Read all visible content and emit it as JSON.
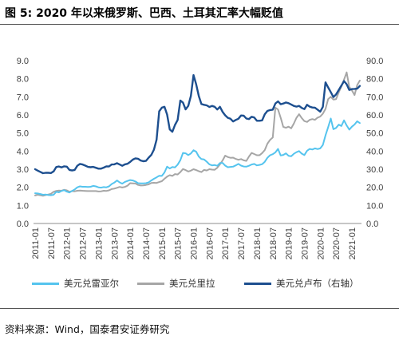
{
  "title": "图 5: 2020 年以来俄罗斯、巴西、土耳其汇率大幅贬值",
  "source": "资料来源：Wind，国泰君安证券研究",
  "chart_data": {
    "type": "line",
    "legend_position": "bottom",
    "grid": false,
    "x": [
      "2011-01",
      "2011-02",
      "2011-03",
      "2011-04",
      "2011-05",
      "2011-06",
      "2011-07",
      "2011-08",
      "2011-09",
      "2011-10",
      "2011-11",
      "2011-12",
      "2012-01",
      "2012-02",
      "2012-03",
      "2012-04",
      "2012-05",
      "2012-06",
      "2012-07",
      "2012-08",
      "2012-09",
      "2012-10",
      "2012-11",
      "2012-12",
      "2013-01",
      "2013-02",
      "2013-03",
      "2013-04",
      "2013-05",
      "2013-06",
      "2013-07",
      "2013-08",
      "2013-09",
      "2013-10",
      "2013-11",
      "2013-12",
      "2014-01",
      "2014-02",
      "2014-03",
      "2014-04",
      "2014-05",
      "2014-06",
      "2014-07",
      "2014-08",
      "2014-09",
      "2014-10",
      "2014-11",
      "2014-12",
      "2015-01",
      "2015-02",
      "2015-03",
      "2015-04",
      "2015-05",
      "2015-06",
      "2015-07",
      "2015-08",
      "2015-09",
      "2015-10",
      "2015-11",
      "2015-12",
      "2016-01",
      "2016-02",
      "2016-03",
      "2016-04",
      "2016-05",
      "2016-06",
      "2016-07",
      "2016-08",
      "2016-09",
      "2016-10",
      "2016-11",
      "2016-12",
      "2017-01",
      "2017-02",
      "2017-03",
      "2017-04",
      "2017-05",
      "2017-06",
      "2017-07",
      "2017-08",
      "2017-09",
      "2017-10",
      "2017-11",
      "2017-12",
      "2018-01",
      "2018-02",
      "2018-03",
      "2018-04",
      "2018-05",
      "2018-06",
      "2018-07",
      "2018-08",
      "2018-09",
      "2018-10",
      "2018-11",
      "2018-12",
      "2019-01",
      "2019-02",
      "2019-03",
      "2019-04",
      "2019-05",
      "2019-06",
      "2019-07",
      "2019-08",
      "2019-09",
      "2019-10",
      "2019-11",
      "2019-12",
      "2020-01",
      "2020-02",
      "2020-03",
      "2020-04",
      "2020-05",
      "2020-06",
      "2020-07",
      "2020-08",
      "2020-09",
      "2020-10",
      "2020-11",
      "2020-12",
      "2021-01",
      "2021-02",
      "2021-03",
      "2021-04"
    ],
    "x_ticks": [
      "2011-01",
      "2011-07",
      "2012-01",
      "2012-07",
      "2013-01",
      "2013-07",
      "2014-01",
      "2014-07",
      "2015-01",
      "2015-07",
      "2016-01",
      "2016-07",
      "2017-01",
      "2017-07",
      "2018-01",
      "2018-07",
      "2019-01",
      "2019-07",
      "2020-01",
      "2020-07",
      "2021-01"
    ],
    "y_left": {
      "range": [
        0,
        9
      ],
      "ticks": [
        "0.0",
        "1.0",
        "2.0",
        "3.0",
        "4.0",
        "5.0",
        "6.0",
        "7.0",
        "8.0",
        "9.0"
      ]
    },
    "y_right": {
      "range": [
        0,
        90
      ],
      "ticks": [
        "0.0",
        "10.0",
        "20.0",
        "30.0",
        "40.0",
        "50.0",
        "60.0",
        "70.0",
        "80.0",
        "90.0"
      ]
    },
    "series": [
      {
        "name": "美元兑雷亚尔",
        "axis": "left",
        "color": "#55c4ee",
        "values": [
          1.67,
          1.66,
          1.63,
          1.59,
          1.6,
          1.57,
          1.56,
          1.59,
          1.75,
          1.72,
          1.8,
          1.84,
          1.76,
          1.71,
          1.8,
          1.88,
          2.0,
          2.05,
          2.03,
          2.03,
          2.02,
          2.03,
          2.08,
          2.05,
          2.0,
          1.98,
          2.01,
          2.0,
          2.05,
          2.18,
          2.26,
          2.38,
          2.27,
          2.2,
          2.3,
          2.35,
          2.4,
          2.38,
          2.32,
          2.23,
          2.22,
          2.22,
          2.23,
          2.27,
          2.38,
          2.47,
          2.55,
          2.64,
          2.63,
          2.82,
          3.14,
          3.04,
          3.12,
          3.1,
          3.25,
          3.5,
          3.9,
          3.88,
          3.78,
          3.87,
          4.05,
          3.97,
          3.7,
          3.56,
          3.54,
          3.42,
          3.27,
          3.21,
          3.23,
          3.19,
          3.34,
          3.35,
          3.2,
          3.11,
          3.13,
          3.14,
          3.21,
          3.29,
          3.2,
          3.15,
          3.14,
          3.19,
          3.26,
          3.29,
          3.21,
          3.24,
          3.28,
          3.41,
          3.63,
          3.77,
          3.83,
          3.93,
          4.12,
          3.76,
          3.79,
          3.88,
          3.74,
          3.72,
          3.85,
          3.94,
          4.0,
          3.86,
          3.78,
          4.02,
          4.12,
          4.09,
          4.15,
          4.11,
          4.15,
          4.34,
          4.87,
          5.32,
          5.8,
          5.21,
          5.28,
          5.46,
          5.39,
          5.7,
          5.42,
          5.19,
          5.35,
          5.47,
          5.65,
          5.55
        ]
      },
      {
        "name": "美元兑里拉",
        "axis": "left",
        "color": "#a6a6a6",
        "values": [
          1.55,
          1.59,
          1.56,
          1.53,
          1.57,
          1.6,
          1.64,
          1.75,
          1.8,
          1.82,
          1.81,
          1.86,
          1.83,
          1.75,
          1.79,
          1.78,
          1.81,
          1.82,
          1.81,
          1.8,
          1.79,
          1.79,
          1.79,
          1.79,
          1.77,
          1.78,
          1.81,
          1.8,
          1.83,
          1.9,
          1.93,
          1.97,
          2.02,
          1.99,
          2.02,
          2.09,
          2.23,
          2.22,
          2.21,
          2.13,
          2.1,
          2.11,
          2.13,
          2.16,
          2.24,
          2.25,
          2.24,
          2.29,
          2.34,
          2.47,
          2.59,
          2.67,
          2.63,
          2.73,
          2.71,
          2.84,
          3.01,
          2.95,
          2.87,
          2.92,
          3.0,
          2.95,
          2.89,
          2.84,
          2.96,
          2.93,
          3.0,
          2.98,
          2.97,
          3.08,
          3.27,
          3.48,
          3.75,
          3.67,
          3.63,
          3.64,
          3.57,
          3.52,
          3.56,
          3.49,
          3.46,
          3.7,
          3.9,
          3.84,
          3.77,
          3.77,
          3.89,
          4.06,
          4.41,
          4.62,
          4.75,
          6.4,
          6.3,
          5.85,
          5.34,
          5.29,
          5.35,
          5.26,
          5.52,
          5.84,
          6.04,
          5.83,
          5.66,
          5.61,
          5.73,
          5.77,
          5.73,
          5.85,
          5.91,
          6.07,
          6.33,
          6.87,
          7.0,
          6.85,
          6.87,
          7.25,
          7.57,
          7.95,
          8.35,
          7.55,
          7.36,
          7.1,
          7.65,
          7.9
        ]
      },
      {
        "name": "美元兑卢布（右轴）",
        "axis": "right",
        "color": "#1d4f8f",
        "values": [
          30.0,
          29.2,
          28.5,
          27.8,
          28.0,
          28.0,
          27.9,
          28.8,
          31.2,
          31.5,
          31.0,
          31.6,
          31.4,
          29.6,
          29.3,
          29.6,
          31.9,
          32.9,
          32.6,
          32.0,
          31.3,
          31.1,
          31.3,
          30.8,
          30.3,
          30.3,
          30.9,
          31.6,
          31.5,
          32.6,
          32.7,
          33.3,
          32.6,
          31.9,
          32.7,
          33.0,
          34.0,
          35.3,
          36.0,
          35.8,
          34.8,
          34.4,
          34.6,
          36.4,
          37.9,
          40.8,
          46.3,
          62.0,
          64.0,
          64.5,
          60.2,
          52.0,
          50.7,
          54.5,
          57.2,
          68.0,
          66.8,
          63.1,
          65.0,
          70.5,
          82.0,
          77.0,
          70.5,
          66.0,
          65.6,
          65.3,
          64.4,
          65.0,
          64.5,
          63.0,
          64.5,
          61.7,
          59.8,
          58.4,
          57.9,
          56.4,
          57.2,
          57.9,
          59.7,
          59.6,
          58.0,
          57.7,
          59.0,
          58.6,
          56.8,
          56.8,
          57.0,
          60.4,
          62.2,
          62.7,
          62.9,
          66.3,
          67.5,
          65.9,
          66.3,
          66.9,
          66.5,
          65.8,
          65.0,
          64.6,
          65.0,
          63.9,
          63.2,
          65.6,
          64.6,
          64.1,
          64.0,
          62.9,
          61.8,
          64.5,
          78.0,
          75.2,
          72.6,
          69.9,
          71.3,
          73.8,
          76.2,
          78.7,
          77.0,
          73.8,
          74.3,
          74.4,
          74.5,
          76.0
        ]
      }
    ]
  }
}
